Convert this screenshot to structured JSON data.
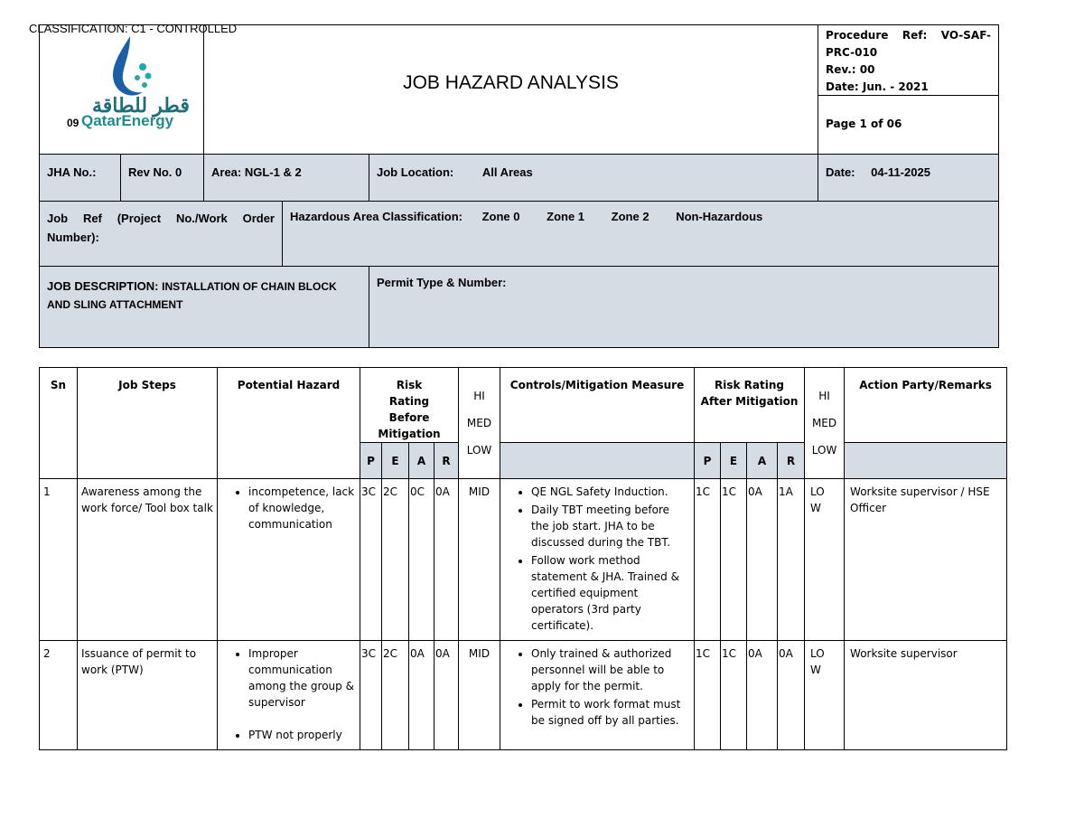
{
  "classification": "CLASSIFICATION: C1 - CONTROLLED",
  "logo": {
    "number": "09",
    "arabic": "قطر للطاقة",
    "name": "QatarEnergy"
  },
  "header": {
    "title": "JOB HAZARD ANALYSIS",
    "procedure_ref": "Procedure Ref: VO-SAF-PRC-010",
    "rev": "Rev.: 00",
    "date": "Date: Jun. - 2021",
    "page": "Page 1 of 06"
  },
  "info": {
    "jha_no": "JHA No.:",
    "rev_no": "Rev No. 0",
    "area": "Area: NGL-1 & 2",
    "job_location_label": "Job Location:",
    "job_location": "All Areas",
    "date_label": "Date:",
    "date": "04-11-2025",
    "job_ref": "Job Ref (Project No./Work Order Number):",
    "hazardous_area_label": "Hazardous Area Classification:",
    "zones": [
      "Zone 0",
      "Zone 1",
      "Zone 2",
      "Non-Hazardous"
    ],
    "job_description_label": "JOB DESCRIPTION:",
    "job_description": "INSTALLATION OF CHAIN BLOCK AND SLING ATTACHMENT",
    "permit": "Permit Type & Number:"
  },
  "table": {
    "headers": {
      "sn": "Sn",
      "job_steps": "Job Steps",
      "hazard": "Potential Hazard",
      "risk_before": "Risk Rating Before Mitigation",
      "level_before": [
        "HI",
        "MED",
        "LOW"
      ],
      "controls": "Controls/Mitigation Measure",
      "risk_after": "Risk Rating After Mitigation",
      "level_after": [
        "HI",
        "MED",
        "LOW"
      ],
      "action": "Action Party/Remarks",
      "pear_before": [
        "P",
        "E",
        "A",
        "R"
      ],
      "pear_after": [
        "P",
        "E",
        "A",
        "R"
      ]
    },
    "rows": [
      {
        "sn": "1",
        "step": "Awareness among the work force/ Tool box talk",
        "hazards": [
          "incompetence, lack of knowledge, communication"
        ],
        "before": [
          "3C",
          "2C",
          "0C",
          "0A"
        ],
        "level": "MID",
        "controls": [
          "QE NGL Safety Induction.",
          "Daily TBT meeting before the job start. JHA to be discussed during the TBT.",
          "Follow work method statement & JHA. Trained & certified equipment operators (3rd party certificate)."
        ],
        "after": [
          "1C",
          "1C",
          "0A",
          "1A"
        ],
        "after_level": "LOW",
        "action": "Worksite supervisor / HSE Officer"
      },
      {
        "sn": "2",
        "step": "Issuance of permit to work (PTW)",
        "hazards": [
          "Improper communication among the group & supervisor",
          "PTW not properly"
        ],
        "before": [
          "3C",
          "2C",
          "0A",
          "0A"
        ],
        "level": "MID",
        "controls": [
          "Only trained & authorized personnel will be able to apply for the permit.",
          "Permit to work format must be signed off by all parties."
        ],
        "after": [
          "1C",
          "1C",
          "0A",
          "0A"
        ],
        "after_level": "LOW",
        "action": "Worksite supervisor"
      }
    ]
  }
}
